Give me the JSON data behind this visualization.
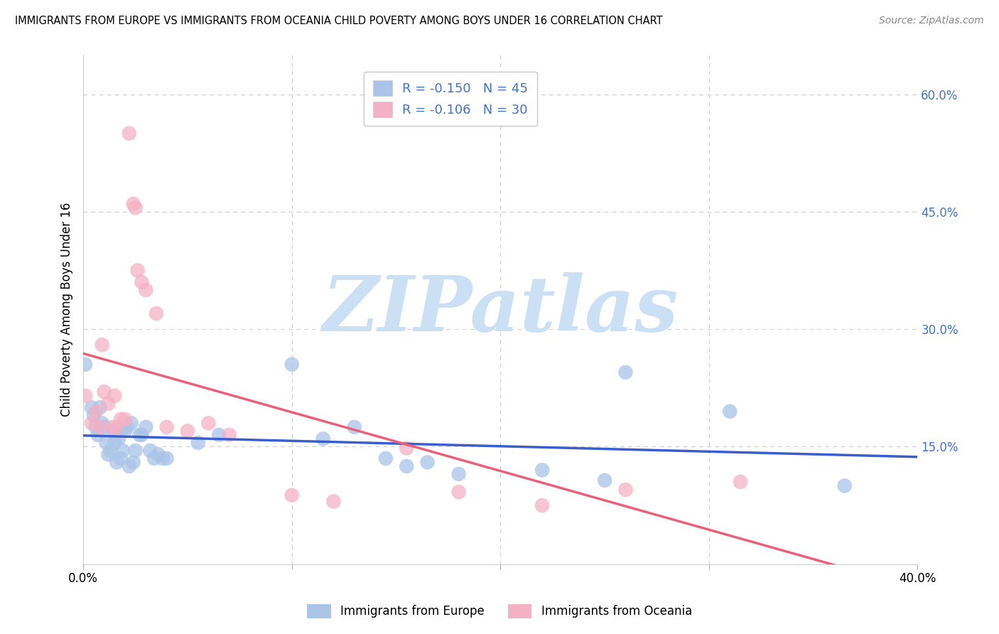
{
  "title": "IMMIGRANTS FROM EUROPE VS IMMIGRANTS FROM OCEANIA CHILD POVERTY AMONG BOYS UNDER 16 CORRELATION CHART",
  "source": "Source: ZipAtlas.com",
  "ylabel": "Child Poverty Among Boys Under 16",
  "x_min": 0.0,
  "x_max": 0.4,
  "y_min": 0.0,
  "y_max": 0.65,
  "y_ticks_right": [
    0.15,
    0.3,
    0.45,
    0.6
  ],
  "y_tick_right_labels": [
    "15.0%",
    "30.0%",
    "45.0%",
    "60.0%"
  ],
  "europe_color": "#aac4e8",
  "oceania_color": "#f4b0c4",
  "europe_line_color": "#3a5fcd",
  "oceania_line_color": "#e8607a",
  "watermark": "ZIPatlas",
  "watermark_color": "#cce0f5",
  "background_color": "#ffffff",
  "grid_color": "#cccccc",
  "europe_x": [
    0.001,
    0.004,
    0.005,
    0.006,
    0.007,
    0.008,
    0.009,
    0.01,
    0.011,
    0.012,
    0.013,
    0.014,
    0.015,
    0.016,
    0.017,
    0.018,
    0.019,
    0.02,
    0.021,
    0.022,
    0.023,
    0.024,
    0.025,
    0.027,
    0.028,
    0.03,
    0.032,
    0.034,
    0.036,
    0.038,
    0.04,
    0.055,
    0.065,
    0.1,
    0.115,
    0.13,
    0.145,
    0.155,
    0.165,
    0.18,
    0.22,
    0.25,
    0.26,
    0.31,
    0.365
  ],
  "europe_y": [
    0.255,
    0.2,
    0.19,
    0.175,
    0.165,
    0.2,
    0.18,
    0.175,
    0.155,
    0.14,
    0.145,
    0.17,
    0.155,
    0.13,
    0.16,
    0.135,
    0.145,
    0.17,
    0.175,
    0.125,
    0.18,
    0.13,
    0.145,
    0.165,
    0.165,
    0.175,
    0.145,
    0.135,
    0.14,
    0.135,
    0.135,
    0.155,
    0.165,
    0.255,
    0.16,
    0.175,
    0.135,
    0.125,
    0.13,
    0.115,
    0.12,
    0.107,
    0.245,
    0.195,
    0.1
  ],
  "oceania_x": [
    0.001,
    0.004,
    0.006,
    0.008,
    0.009,
    0.01,
    0.012,
    0.014,
    0.015,
    0.016,
    0.018,
    0.02,
    0.022,
    0.024,
    0.025,
    0.026,
    0.028,
    0.03,
    0.035,
    0.04,
    0.05,
    0.06,
    0.07,
    0.1,
    0.12,
    0.155,
    0.18,
    0.22,
    0.26,
    0.315
  ],
  "oceania_y": [
    0.215,
    0.18,
    0.195,
    0.175,
    0.28,
    0.22,
    0.205,
    0.175,
    0.215,
    0.175,
    0.185,
    0.185,
    0.55,
    0.46,
    0.455,
    0.375,
    0.36,
    0.35,
    0.32,
    0.175,
    0.17,
    0.18,
    0.165,
    0.088,
    0.08,
    0.148,
    0.092,
    0.075,
    0.095,
    0.105
  ],
  "legend_top": [
    {
      "label": "R = -0.150   N = 45",
      "color": "#aac4e8"
    },
    {
      "label": "R = -0.106   N = 30",
      "color": "#f4b0c4"
    }
  ],
  "legend_bottom": [
    {
      "label": "Immigrants from Europe",
      "color": "#aac4e8"
    },
    {
      "label": "Immigrants from Oceania",
      "color": "#f4b0c4"
    }
  ]
}
